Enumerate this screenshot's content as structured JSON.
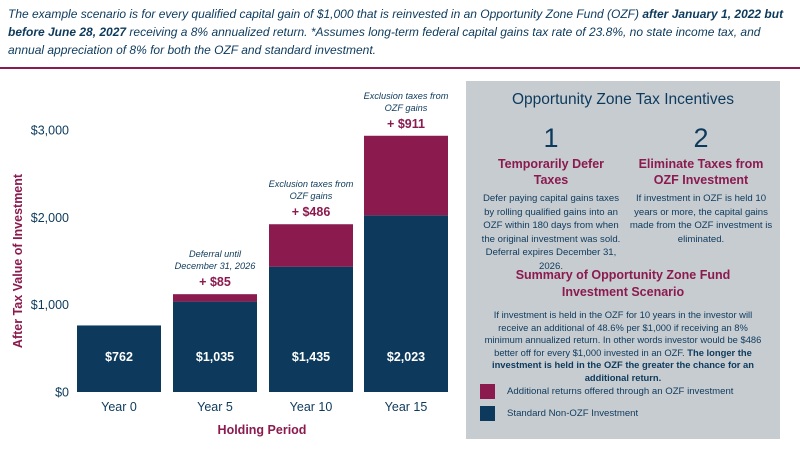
{
  "intro": {
    "part1": "The example scenario is for every qualified capital gain of $1,000 that is reinvested in an Opportunity Zone Fund (OZF) ",
    "bold": "after January 1, 2022 but before June 28, 2027",
    "part2": " receiving a 8% annualized return. *Assumes long-term federal capital gains tax rate of 23.8%, no state income tax, and annual appreciation of 8% for both the OZF and standard investment."
  },
  "colors": {
    "navy": "#0d3a5c",
    "maroon": "#8b1a4f",
    "panel": "#c7ccd1"
  },
  "chart_data": {
    "type": "bar",
    "stacked": true,
    "categories": [
      "Year 0",
      "Year 5",
      "Year 10",
      "Year 15"
    ],
    "series": [
      {
        "name": "Standard Non-OZF Investment",
        "color": "#0d3a5c",
        "values": [
          762,
          1035,
          1435,
          2023
        ],
        "labels": [
          "$762",
          "$1,035",
          "$1,435",
          "$2,023"
        ]
      },
      {
        "name": "Additional returns offered through an OZF investment",
        "color": "#8b1a4f",
        "values": [
          0,
          85,
          486,
          911
        ],
        "labels": [
          "",
          "+ $85",
          "+ $486",
          "+ $911"
        ]
      }
    ],
    "annotations": [
      "",
      "Deferral until December 31, 2026",
      "Exclusion taxes from OZF gains",
      "Exclusion taxes from OZF gains"
    ],
    "annotation_lines": [
      [],
      [
        "Deferral until",
        "December 31, 2026"
      ],
      [
        "Exclusion taxes from",
        "OZF gains"
      ],
      [
        "Exclusion taxes from",
        "OZF gains"
      ]
    ],
    "yticks": [
      "$0",
      "$1,000",
      "$2,000",
      "$3,000"
    ],
    "ytick_values": [
      0,
      1000,
      2000,
      3000
    ],
    "ylim": [
      0,
      3000
    ],
    "xlabel": "Holding Period",
    "ylabel": "After Tax Value of Investment",
    "grid": false
  },
  "panel": {
    "title": "Opportunity Zone Tax Incentives",
    "incentive1": {
      "number": "1",
      "title": "Temporarily Defer Taxes",
      "body": "Defer paying capital gains taxes by rolling qualified gains into an OZF within 180 days from when the original investment was sold. Deferral expires December 31, 2026."
    },
    "incentive2": {
      "number": "2",
      "title": "Eliminate Taxes from OZF Investment",
      "body": "If investment in OZF is held 10 years or more, the capital gains made from the OZF investment is eliminated."
    },
    "summary_title": "Summary of Opportunity Zone Fund Investment Scenario",
    "summary_body": "If investment is held in the OZF for 10 years in the investor will receive an additional of 48.6% per $1,000 if receiving an 8% minimum annualized return. In other words investor would be $486 better off for every $1,000 invested in an OZF. ",
    "summary_bold": "The longer the investment is held in the OZF the greater the chance for an additional return.",
    "legend": [
      "Additional returns offered through an OZF investment",
      "Standard Non-OZF Investment"
    ]
  }
}
